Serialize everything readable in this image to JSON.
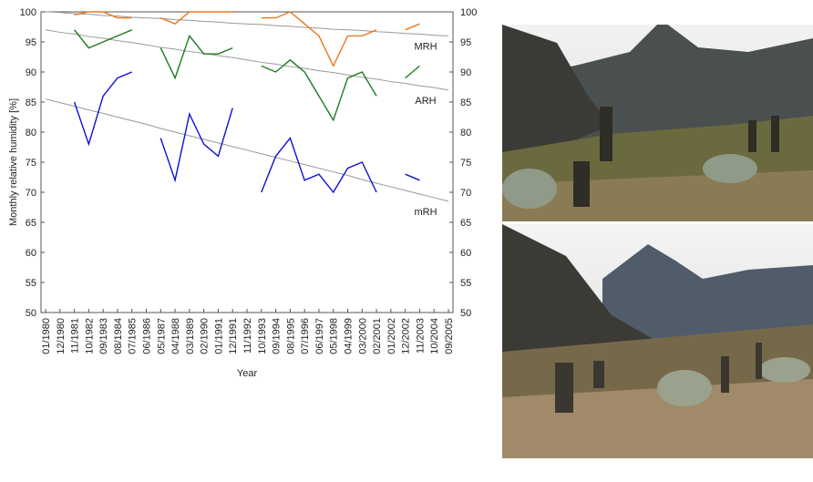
{
  "chart_data": {
    "type": "line",
    "x_label": "Year",
    "y_label": "Monthly relative humidity [%]",
    "categories": [
      "01/1980",
      "12/1980",
      "11/1981",
      "10/1982",
      "09/1983",
      "08/1984",
      "07/1985",
      "06/1986",
      "05/1987",
      "04/1988",
      "03/1989",
      "02/1990",
      "01/1991",
      "12/1991",
      "11/1992",
      "10/1993",
      "09/1994",
      "08/1995",
      "07/1996",
      "06/1997",
      "05/1998",
      "04/1999",
      "03/2000",
      "02/2001",
      "01/2002",
      "12/2002",
      "11/2003",
      "10/2004",
      "09/2005"
    ],
    "series": [
      {
        "name": "MRH",
        "color": "#e8781e",
        "values": [
          null,
          null,
          99.5,
          100,
          100,
          99,
          99,
          null,
          99,
          98,
          100,
          100,
          100,
          100,
          null,
          99,
          99,
          100,
          98,
          96,
          91,
          96,
          96,
          97,
          null,
          97,
          98,
          null,
          null
        ]
      },
      {
        "name": "ARH",
        "color": "#1e7a1e",
        "values": [
          null,
          null,
          97,
          94,
          95,
          96,
          97,
          null,
          94,
          89,
          96,
          93,
          93,
          94,
          null,
          91,
          90,
          92,
          90,
          86,
          82,
          89,
          90,
          86,
          null,
          89,
          91,
          null,
          null
        ]
      },
      {
        "name": "mRH",
        "color": "#1010d8",
        "values": [
          null,
          null,
          85,
          78,
          86,
          89,
          90,
          null,
          79,
          72,
          83,
          78,
          76,
          84,
          null,
          70,
          76,
          79,
          72,
          73,
          70,
          74,
          75,
          70,
          null,
          73,
          72,
          null,
          null
        ]
      }
    ],
    "trends": [
      {
        "color": "#999999",
        "values": [
          100,
          99.9,
          99.7,
          99.6,
          99.4,
          99.3,
          99.1,
          99,
          98.9,
          98.7,
          98.6,
          98.4,
          98.3,
          98.1,
          98,
          97.9,
          97.7,
          97.6,
          97.4,
          97.3,
          97.1,
          97,
          96.9,
          96.7,
          96.6,
          96.4,
          96.3,
          96.1,
          96
        ]
      },
      {
        "color": "#999999",
        "values": [
          97,
          96.6,
          96.3,
          95.9,
          95.6,
          95.2,
          94.9,
          94.5,
          94.1,
          93.8,
          93.4,
          93.1,
          92.7,
          92.4,
          92,
          91.6,
          91.3,
          90.9,
          90.6,
          90.2,
          89.9,
          89.5,
          89.1,
          88.8,
          88.4,
          88.1,
          87.7,
          87.4,
          87
        ]
      },
      {
        "color": "#999999",
        "values": [
          85.5,
          84.9,
          84.3,
          83.7,
          83.1,
          82.5,
          81.9,
          81.3,
          80.6,
          80,
          79.4,
          78.8,
          78.2,
          77.6,
          77,
          76.4,
          75.8,
          75.2,
          74.6,
          74,
          73.4,
          72.8,
          72.1,
          71.5,
          70.9,
          70.3,
          69.7,
          69.1,
          68.5
        ]
      }
    ],
    "ylim": [
      50,
      100
    ],
    "yticks": [
      50,
      55,
      60,
      65,
      70,
      75,
      80,
      85,
      90,
      95,
      100
    ],
    "y2lim": [
      50,
      100
    ],
    "y2ticks": [
      50,
      55,
      60,
      65,
      70,
      75,
      80,
      85,
      90,
      95,
      100
    ]
  }
}
